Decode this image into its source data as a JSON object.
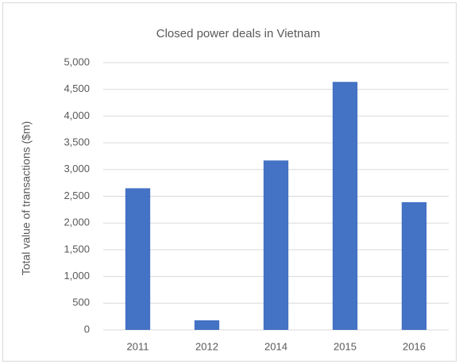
{
  "chart_data": {
    "type": "bar",
    "title": "Closed power deals in Vietnam",
    "y_label": "Total value of transactions ($m)",
    "categories": [
      "2011",
      "2012",
      "2014",
      "2015",
      "2016"
    ],
    "values": [
      2650,
      180,
      3170,
      4640,
      2390
    ],
    "color": "#4472c4",
    "ylim": [
      0,
      5000
    ],
    "yticks": [
      0,
      500,
      {
        "value": 1000,
        "label": "1,000"
      },
      {
        "value": 1500,
        "label": "1,500"
      },
      {
        "value": 2000,
        "label": "2,000"
      },
      {
        "value": 2500,
        "label": "2,500"
      },
      {
        "value": 3000,
        "label": "3,000"
      },
      {
        "value": 3500,
        "label": "3,500"
      },
      {
        "value": 4000,
        "label": "4,000"
      },
      {
        "value": 4500,
        "label": "4,500"
      },
      {
        "value": 5000,
        "label": "5,000"
      }
    ],
    "grid": true
  }
}
